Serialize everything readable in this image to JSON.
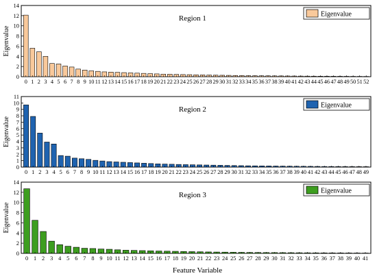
{
  "figure": {
    "xlabel": "Feature Variable"
  },
  "chart_data": [
    {
      "type": "bar",
      "title": "Region 1",
      "xlabel": "",
      "ylabel": "Eigenvalue",
      "legend": {
        "label": "Eigenvalue",
        "placement": "top-right"
      },
      "color": "#f9c99b",
      "ylim": [
        0,
        14
      ],
      "yticks": [
        0,
        2,
        4,
        6,
        8,
        10,
        12,
        14
      ],
      "categories": [
        "0",
        "1",
        "2",
        "3",
        "4",
        "5",
        "6",
        "7",
        "8",
        "9",
        "10",
        "11",
        "12",
        "13",
        "14",
        "15",
        "16",
        "17",
        "18",
        "19",
        "20",
        "21",
        "22",
        "23",
        "24",
        "25",
        "26",
        "27",
        "28",
        "29",
        "30",
        "31",
        "32",
        "33",
        "34",
        "35",
        "36",
        "37",
        "38",
        "39",
        "40",
        "41",
        "42",
        "43",
        "44",
        "45",
        "46",
        "47",
        "48",
        "49",
        "50",
        "51",
        "52"
      ],
      "values": [
        12.1,
        5.6,
        4.9,
        4.0,
        2.6,
        2.5,
        2.1,
        1.9,
        1.5,
        1.3,
        1.15,
        1.05,
        0.95,
        0.9,
        0.85,
        0.8,
        0.75,
        0.7,
        0.65,
        0.6,
        0.55,
        0.5,
        0.48,
        0.45,
        0.42,
        0.4,
        0.37,
        0.35,
        0.32,
        0.3,
        0.28,
        0.26,
        0.24,
        0.22,
        0.2,
        0.19,
        0.18,
        0.17,
        0.16,
        0.15,
        0.14,
        0.13,
        0.12,
        0.11,
        0.1,
        0.09,
        0.085,
        0.08,
        0.075,
        0.07,
        0.065,
        0.06,
        0.05
      ]
    },
    {
      "type": "bar",
      "title": "Region 2",
      "xlabel": "",
      "ylabel": "Eigenvalue",
      "legend": {
        "label": "Eigenvalue",
        "placement": "top-right"
      },
      "color": "#1f63b0",
      "ylim": [
        0,
        11
      ],
      "yticks": [
        0,
        1,
        2,
        3,
        4,
        5,
        6,
        7,
        8,
        9,
        10,
        11
      ],
      "categories": [
        "0",
        "1",
        "2",
        "3",
        "4",
        "5",
        "6",
        "7",
        "8",
        "9",
        "10",
        "11",
        "12",
        "13",
        "14",
        "15",
        "16",
        "17",
        "18",
        "19",
        "20",
        "21",
        "22",
        "23",
        "24",
        "25",
        "26",
        "27",
        "28",
        "29",
        "30",
        "31",
        "32",
        "33",
        "34",
        "35",
        "36",
        "37",
        "38",
        "39",
        "40",
        "41",
        "42",
        "43",
        "44",
        "45",
        "46",
        "47",
        "48",
        "49"
      ],
      "values": [
        9.7,
        7.9,
        5.3,
        3.9,
        3.6,
        1.8,
        1.7,
        1.4,
        1.3,
        1.2,
        1.05,
        0.95,
        0.85,
        0.8,
        0.75,
        0.7,
        0.65,
        0.6,
        0.55,
        0.5,
        0.47,
        0.44,
        0.41,
        0.38,
        0.36,
        0.34,
        0.32,
        0.3,
        0.28,
        0.26,
        0.24,
        0.22,
        0.2,
        0.19,
        0.18,
        0.17,
        0.16,
        0.15,
        0.14,
        0.13,
        0.12,
        0.11,
        0.1,
        0.09,
        0.085,
        0.08,
        0.075,
        0.07,
        0.065,
        0.06
      ]
    },
    {
      "type": "bar",
      "title": "Region 3",
      "xlabel": "",
      "ylabel": "Eigenvalue",
      "legend": {
        "label": "Eigenvalue",
        "placement": "top-right"
      },
      "color": "#3d9e1f",
      "ylim": [
        0,
        14
      ],
      "yticks": [
        0,
        2,
        4,
        6,
        8,
        10,
        12,
        14
      ],
      "categories": [
        "0",
        "1",
        "2",
        "3",
        "4",
        "5",
        "6",
        "7",
        "8",
        "9",
        "10",
        "11",
        "12",
        "13",
        "14",
        "15",
        "16",
        "17",
        "18",
        "19",
        "20",
        "21",
        "22",
        "23",
        "24",
        "25",
        "26",
        "27",
        "28",
        "29",
        "30",
        "31",
        "32",
        "33",
        "34",
        "35",
        "36",
        "37",
        "38",
        "39",
        "40",
        "41"
      ],
      "values": [
        12.7,
        6.5,
        4.3,
        2.4,
        1.7,
        1.4,
        1.2,
        1.0,
        0.95,
        0.85,
        0.8,
        0.7,
        0.62,
        0.58,
        0.54,
        0.5,
        0.46,
        0.43,
        0.4,
        0.37,
        0.34,
        0.31,
        0.28,
        0.26,
        0.24,
        0.22,
        0.2,
        0.18,
        0.17,
        0.16,
        0.15,
        0.14,
        0.13,
        0.12,
        0.11,
        0.1,
        0.09,
        0.085,
        0.08,
        0.075,
        0.07,
        0.06
      ]
    }
  ]
}
